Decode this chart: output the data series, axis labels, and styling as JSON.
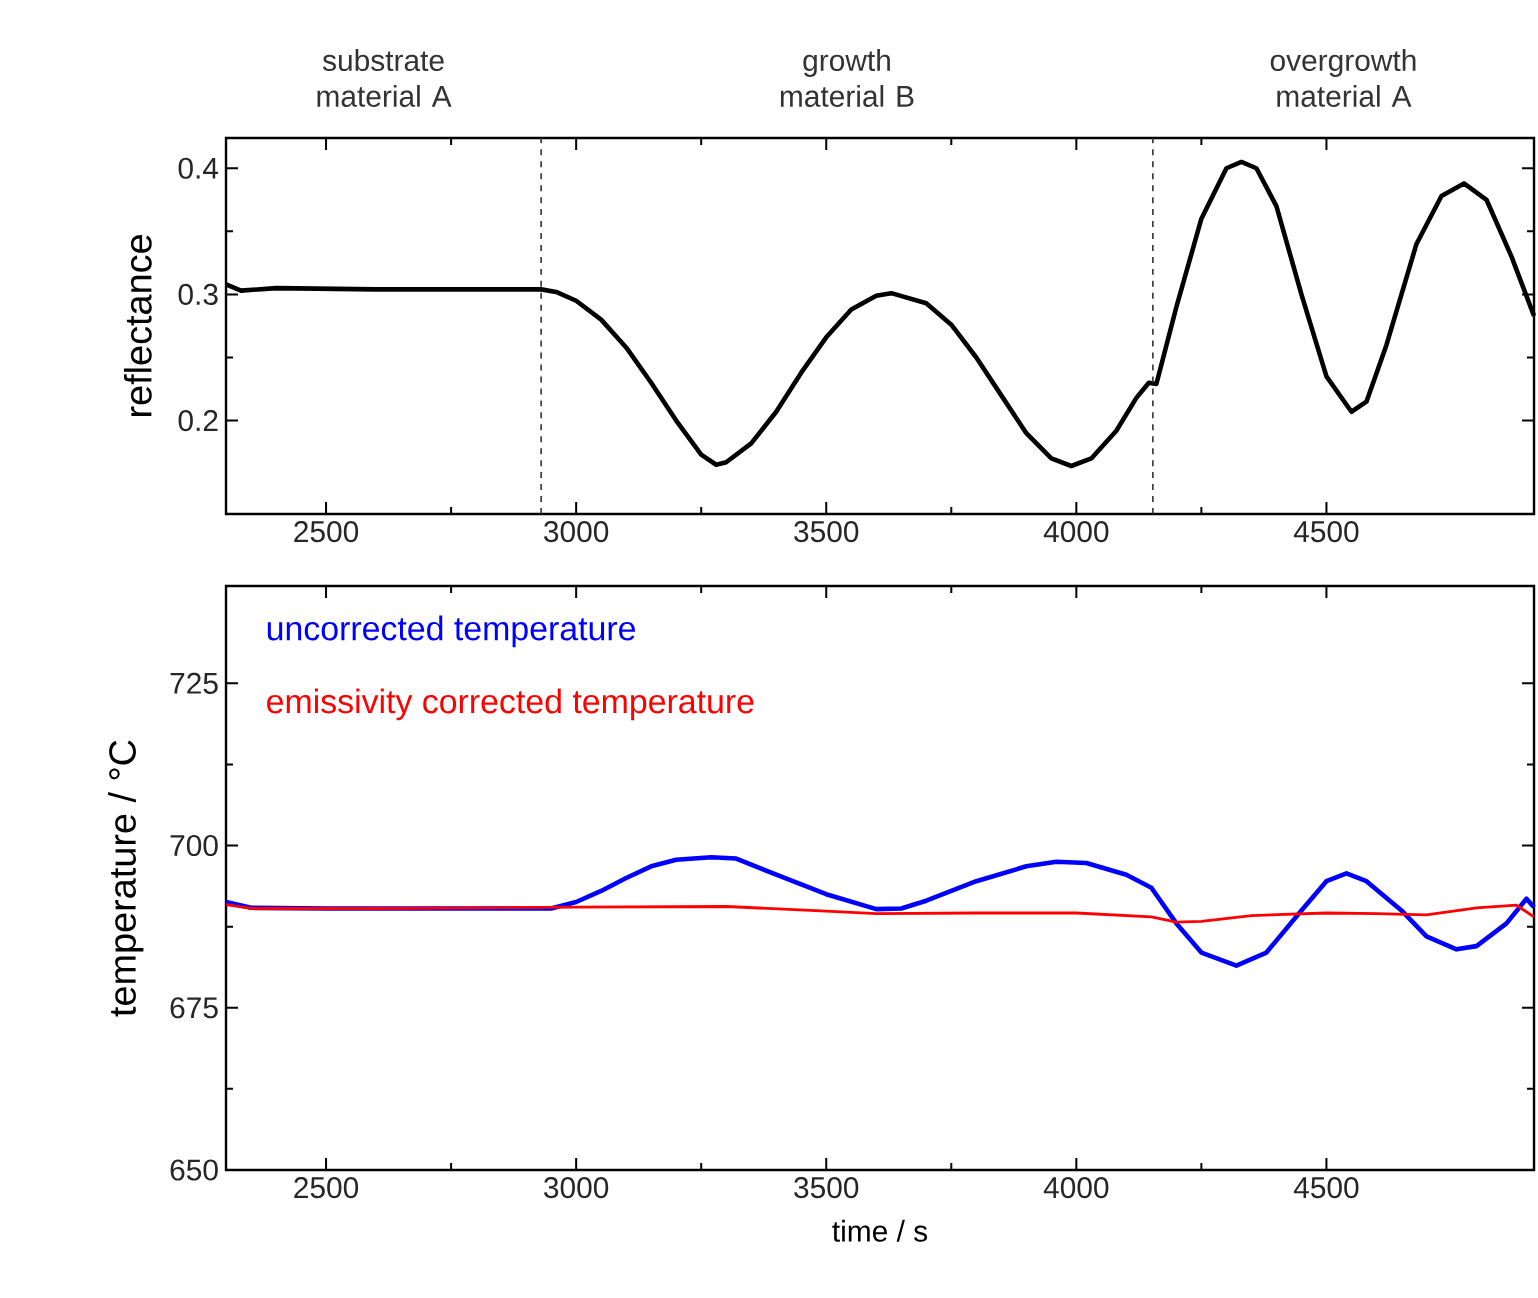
{
  "chart_data": [
    {
      "type": "line",
      "ylabel": "reflectance",
      "annotations": [
        "substrate material A",
        "growth material B",
        "overgrowth material A"
      ],
      "xlim": [
        2300,
        4915
      ],
      "ylim": [
        0.126,
        0.424
      ],
      "xticks": [
        2500,
        3000,
        3500,
        4000,
        4500
      ],
      "yticks": [
        0.2,
        0.3,
        0.4
      ],
      "ref_lines": [
        {
          "axis": "x",
          "value": 2930,
          "line_style": "dashed"
        },
        {
          "axis": "x",
          "value": 4153,
          "line_style": "dashed"
        }
      ],
      "series": [
        {
          "color": "#000000",
          "x": [
            2300,
            2330,
            2400,
            2600,
            2800,
            2930,
            2960,
            3000,
            3050,
            3100,
            3150,
            3200,
            3250,
            3280,
            3300,
            3350,
            3400,
            3450,
            3500,
            3550,
            3600,
            3630,
            3700,
            3750,
            3800,
            3850,
            3900,
            3950,
            3990,
            4030,
            4080,
            4120,
            4145,
            4160,
            4200,
            4250,
            4300,
            4330,
            4360,
            4400,
            4450,
            4500,
            4550,
            4580,
            4620,
            4680,
            4730,
            4775,
            4820,
            4870,
            4915
          ],
          "values": [
            0.308,
            0.303,
            0.305,
            0.304,
            0.304,
            0.304,
            0.302,
            0.295,
            0.28,
            0.258,
            0.23,
            0.2,
            0.173,
            0.165,
            0.167,
            0.182,
            0.207,
            0.238,
            0.266,
            0.288,
            0.299,
            0.301,
            0.293,
            0.276,
            0.25,
            0.22,
            0.19,
            0.17,
            0.164,
            0.17,
            0.192,
            0.218,
            0.23,
            0.229,
            0.29,
            0.36,
            0.4,
            0.405,
            0.4,
            0.37,
            0.3,
            0.235,
            0.207,
            0.215,
            0.26,
            0.34,
            0.378,
            0.388,
            0.375,
            0.33,
            0.283
          ]
        }
      ]
    },
    {
      "type": "line",
      "xlabel": "time / s",
      "ylabel": "temperature / °C",
      "legend": "top left",
      "xlim": [
        2300,
        4915
      ],
      "ylim": [
        650,
        740
      ],
      "xticks": [
        2500,
        3000,
        3500,
        4000,
        4500
      ],
      "yticks": [
        650,
        675,
        700,
        725
      ],
      "series": [
        {
          "name": "uncorrected temperature",
          "color": "#0000ff",
          "x": [
            2300,
            2350,
            2500,
            2700,
            2950,
            3000,
            3050,
            3100,
            3150,
            3200,
            3270,
            3320,
            3400,
            3500,
            3600,
            3650,
            3700,
            3800,
            3900,
            3960,
            4020,
            4100,
            4150,
            4200,
            4250,
            4320,
            4380,
            4450,
            4500,
            4540,
            4580,
            4650,
            4700,
            4760,
            4800,
            4860,
            4900,
            4915
          ],
          "values": [
            691.3,
            690.4,
            690.3,
            690.3,
            690.3,
            691.3,
            693,
            695,
            696.8,
            697.8,
            698.2,
            698,
            695.5,
            692.5,
            690.2,
            690.3,
            691.5,
            694.5,
            696.8,
            697.5,
            697.3,
            695.5,
            693.5,
            688,
            683.5,
            681.5,
            683.5,
            690,
            694.5,
            695.7,
            694.5,
            690,
            686,
            684,
            684.5,
            688,
            691.8,
            690.5
          ]
        },
        {
          "name": "emissivity corrected temperature",
          "color": "#ff0000",
          "x": [
            2300,
            2350,
            2600,
            3000,
            3300,
            3500,
            3600,
            3800,
            4000,
            4150,
            4200,
            4250,
            4350,
            4500,
            4600,
            4700,
            4800,
            4880,
            4915
          ],
          "values": [
            690.9,
            690.3,
            690.3,
            690.5,
            690.6,
            689.9,
            689.5,
            689.6,
            689.6,
            689,
            688.2,
            688.3,
            689.2,
            689.6,
            689.5,
            689.3,
            690.4,
            690.8,
            689
          ]
        }
      ]
    }
  ]
}
